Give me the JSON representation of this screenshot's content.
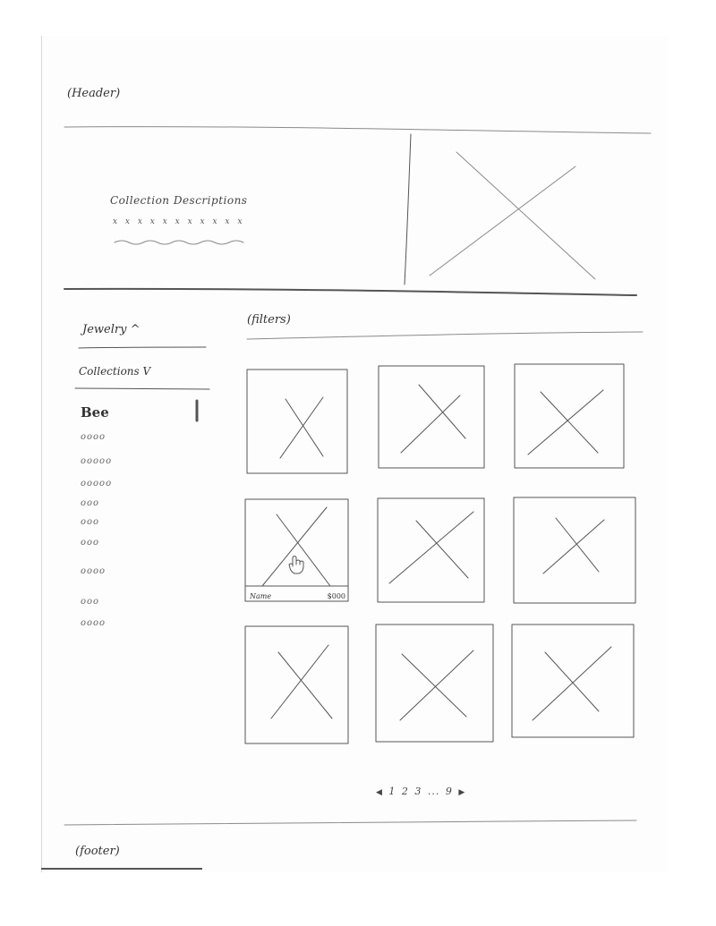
{
  "header": {
    "label": "(Header)"
  },
  "hero": {
    "title": "Collection Descriptions",
    "text_marks": "x x x x x x x x x x x"
  },
  "sidebar": {
    "jewelry": "Jewelry ^",
    "collections": "Collections V",
    "active_collection": "Bee",
    "items": [
      "oooo",
      "ooooo",
      "ooooo",
      "ooo",
      "ooo",
      "ooo",
      "oooo",
      "ooo",
      "oooo"
    ]
  },
  "filters": {
    "label": "(filters)"
  },
  "product_grid": {
    "hover_tile": {
      "name": "Name",
      "price": "$000"
    }
  },
  "pagination": {
    "prev_icon": "left-triangle-icon",
    "next_icon": "right-triangle-icon",
    "pages": [
      "1",
      "2",
      "3"
    ],
    "ellipsis": "...",
    "last": "9"
  },
  "footer": {
    "label": "(footer)"
  },
  "icons": {
    "hero_image": "image-placeholder-icon",
    "product_image": "image-placeholder-icon",
    "cursor": "hand-pointer-icon"
  }
}
